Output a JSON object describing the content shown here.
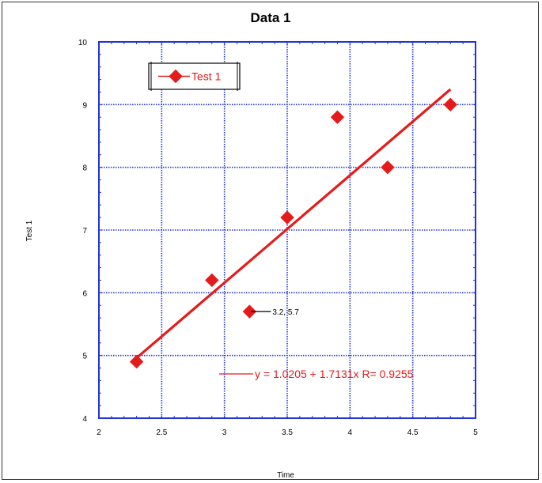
{
  "chart_data": {
    "type": "scatter",
    "title": "Data 1",
    "xlabel": "Time",
    "ylabel": "Test 1",
    "xlim": [
      2,
      5
    ],
    "ylim": [
      4,
      10
    ],
    "x_ticks": [
      "2",
      "2.5",
      "3",
      "3.5",
      "4",
      "4.5",
      "5"
    ],
    "y_ticks": [
      "4",
      "5",
      "6",
      "7",
      "8",
      "9",
      "10"
    ],
    "grid": true,
    "legend_placement": "top-left",
    "colors": {
      "series": "#e51b1b",
      "grid": "#2233dd",
      "axis": "#2233dd"
    },
    "series": [
      {
        "name": "Test 1",
        "marker": "diamond",
        "x": [
          2.3,
          2.9,
          3.2,
          3.5,
          3.9,
          4.3,
          4.8
        ],
        "y": [
          4.9,
          6.2,
          5.7,
          7.2,
          8.8,
          8.0,
          9.0
        ]
      }
    ],
    "point_annotation": {
      "x": 3.2,
      "y": 5.7,
      "text": "3.2, 5.7"
    },
    "fit": {
      "intercept": 1.0205,
      "slope": 1.7131,
      "r": 0.9255,
      "x_range": [
        2.3,
        4.8
      ],
      "label": "y = 1.0205 + 1.7131x    R= 0.9255"
    }
  }
}
